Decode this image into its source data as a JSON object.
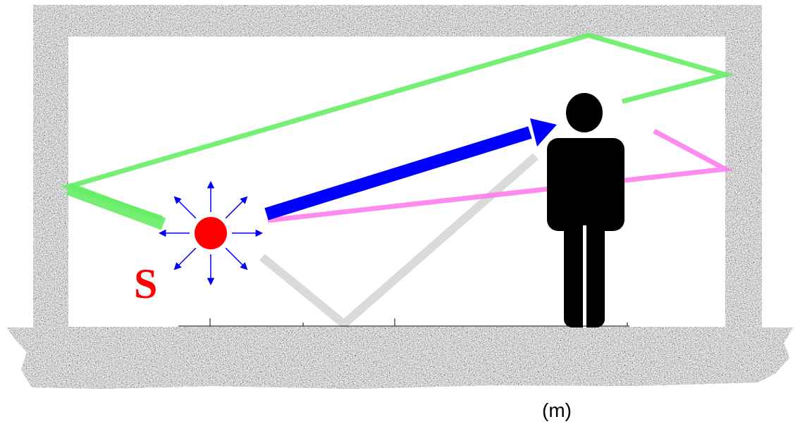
{
  "source": {
    "label": "S"
  },
  "axis": {
    "unit": "(m)"
  },
  "colors": {
    "source_dot": "#ff0000",
    "source_label": "#ff0000",
    "emission_arrows": "#0000ff",
    "direct_path": "#0000ff",
    "green_path": "#66ee66",
    "pink_path": "#ff77ee",
    "gray_path": "#d6d6d6",
    "person": "#000000",
    "wall": "#9a9a9a",
    "interior": "#ffffff"
  },
  "icons": {
    "source": "sound-source-icon",
    "listener": "person-icon"
  }
}
